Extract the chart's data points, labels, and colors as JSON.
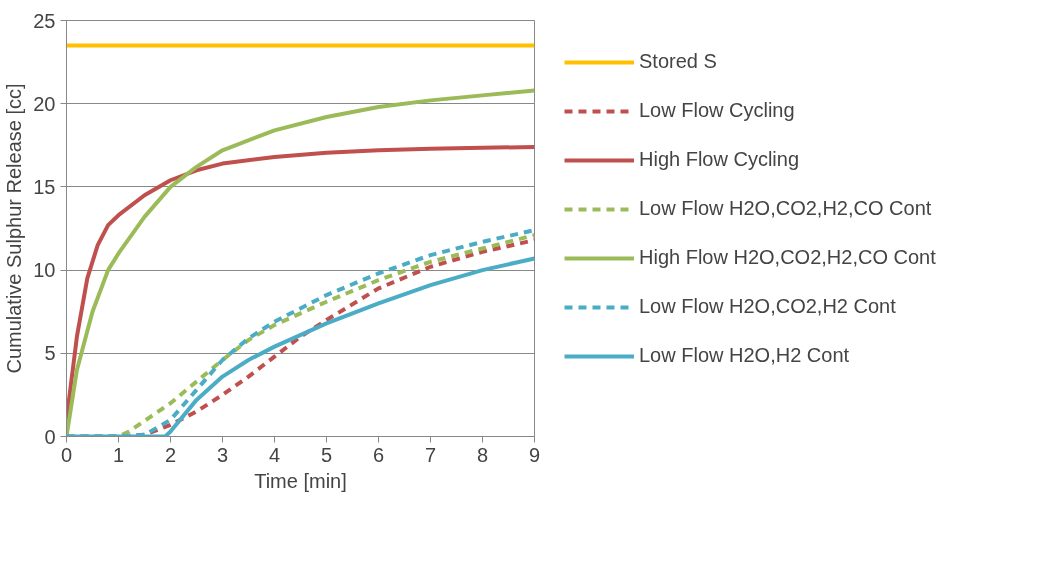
{
  "chart_data": {
    "type": "line",
    "xlabel": "Time [min]",
    "ylabel": "Cumulative Sulphur Release [cc]",
    "xlim": [
      0,
      9
    ],
    "xticks": [
      0,
      1,
      2,
      3,
      4,
      5,
      6,
      7,
      8,
      9
    ],
    "ylim": [
      0,
      25
    ],
    "yticks": [
      0,
      5,
      10,
      15,
      20,
      25
    ],
    "grid": "y",
    "legend": "right",
    "marker": "none",
    "series": [
      {
        "name": "Stored S",
        "color": "#ffc000",
        "line_style": "solid",
        "x": [
          0,
          9
        ],
        "values": [
          23.5,
          23.5
        ]
      },
      {
        "name": "Low Flow Cycling",
        "color": "#c0504d",
        "line_style": "dashed",
        "x": [
          0,
          1,
          1.5,
          2,
          2.5,
          3,
          3.5,
          4,
          4.5,
          5,
          6,
          7,
          8,
          9
        ],
        "values": [
          0,
          0,
          0.1,
          0.7,
          1.5,
          2.5,
          3.6,
          4.8,
          6,
          7,
          8.9,
          10.2,
          11.1,
          11.8
        ]
      },
      {
        "name": "High Flow Cycling",
        "color": "#c0504d",
        "line_style": "solid",
        "x": [
          0,
          0.2,
          0.4,
          0.6,
          0.8,
          1,
          1.5,
          2,
          2.5,
          3,
          4,
          5,
          6,
          7,
          8,
          9
        ],
        "values": [
          1,
          6,
          9.5,
          11.5,
          12.7,
          13.3,
          14.5,
          15.4,
          16,
          16.4,
          16.8,
          17.05,
          17.2,
          17.3,
          17.35,
          17.4
        ]
      },
      {
        "name": "Low Flow H2O,CO2,H2,CO Cont",
        "color": "#9bbb59",
        "line_style": "dashed",
        "x": [
          0,
          1,
          1.2,
          1.6,
          2,
          2.5,
          3,
          3.5,
          4,
          5,
          6,
          7,
          8,
          9
        ],
        "values": [
          0,
          0,
          0.3,
          1.15,
          2,
          3.3,
          4.6,
          5.8,
          6.7,
          8.1,
          9.4,
          10.5,
          11.3,
          12.1
        ]
      },
      {
        "name": "High Flow H2O,CO2,H2,CO Cont",
        "color": "#9bbb59",
        "line_style": "solid",
        "x": [
          0,
          0.2,
          0.5,
          0.8,
          1,
          1.5,
          2,
          2.5,
          3,
          4,
          5,
          6,
          7,
          8,
          9
        ],
        "values": [
          0,
          4,
          7.5,
          10,
          11,
          13.2,
          15,
          16.2,
          17.2,
          18.4,
          19.2,
          19.8,
          20.2,
          20.5,
          20.8
        ]
      },
      {
        "name": "Low Flow H2O,CO2,H2 Cont",
        "color": "#4bacc6",
        "line_style": "dashed",
        "x": [
          0,
          1,
          1.5,
          2,
          2.5,
          3,
          3.5,
          4,
          5,
          6,
          7,
          8,
          9
        ],
        "values": [
          0,
          0,
          0.1,
          1,
          2.8,
          4.6,
          5.9,
          6.9,
          8.5,
          9.8,
          10.9,
          11.7,
          12.4
        ]
      },
      {
        "name": "Low Flow H2O,H2 Cont",
        "color": "#4bacc6",
        "line_style": "solid",
        "x": [
          0,
          1,
          1.9,
          2,
          2.5,
          3,
          3.5,
          4,
          5,
          6,
          7,
          8,
          9
        ],
        "values": [
          0,
          0,
          0,
          0.3,
          2.2,
          3.6,
          4.6,
          5.4,
          6.8,
          8,
          9.1,
          10,
          10.7
        ]
      }
    ]
  }
}
